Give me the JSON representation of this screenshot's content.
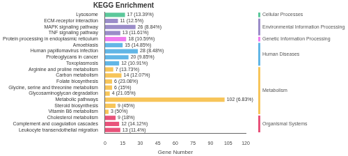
{
  "chart_data": {
    "type": "bar",
    "orientation": "horizontal",
    "title": "KEGG Enrichment",
    "x_label": "Gene Number",
    "categories": [
      "Lysosome",
      "ECM-receptor interaction",
      "MAPK signaling pathway",
      "TNF signaling pathway",
      "Protein processing in endoplasmic reticulum",
      "Amoebiasis",
      "Human papillomavirus infection",
      "Proteoglycans in cancer",
      "Toxoplasmosis",
      "Arginine and proline metabolism",
      "Carbon metabolism",
      "Folate biosynthesis",
      "Glycine, serine and threonine metabolism",
      "Glycosaminoglycan degradation",
      "Metabolic pathways",
      "Steroid biosynthesis",
      "Vitamin B6 metabolism",
      "Cholesterol metabolism",
      "Complement and coagulation cascades",
      "Leukocyte transendothelial migration"
    ],
    "values": [
      17,
      11,
      26,
      13,
      18,
      15,
      28,
      20,
      12,
      7,
      14,
      6,
      6,
      4,
      102,
      9,
      3,
      9,
      12,
      13
    ],
    "value_labels": [
      "17 (13.39%)",
      "11 (12.5%)",
      "26 (8.84%)",
      "13 (11.61%)",
      "18 (10.59%)",
      "15 (14.85%)",
      "28 (8.48%)",
      "20 (9.85%)",
      "12 (10.91%)",
      "7 (13.73%)",
      "14 (12.07%)",
      "6 (23.08%)",
      "6 (15%)",
      "4 (21.05%)",
      "102 (6.83%)",
      "9 (45%)",
      "3 (50%)",
      "9 (18%)",
      "12 (14.12%)",
      "13 (11.4%)"
    ],
    "data_labels": true,
    "colors": [
      "#5cc89b",
      "#9b8dc9",
      "#9b8dc9",
      "#9b8dc9",
      "#f07cf0",
      "#62b6e6",
      "#62b6e6",
      "#62b6e6",
      "#62b6e6",
      "#f7c55a",
      "#f7c55a",
      "#f7c55a",
      "#f7c55a",
      "#f7c55a",
      "#f7c55a",
      "#f7c55a",
      "#f7c55a",
      "#e8527a",
      "#e8527a",
      "#e8527a"
    ],
    "groups": [
      {
        "name": "Cellular Processes",
        "color": "#5cc89b",
        "categories": [
          "Lysosome"
        ]
      },
      {
        "name": "Environmental Information Processing",
        "color": "#9b8dc9",
        "categories": [
          "ECM-receptor interaction",
          "MAPK signaling pathway",
          "TNF signaling pathway"
        ]
      },
      {
        "name": "Genetic Information Processing",
        "color": "#f07cf0",
        "categories": [
          "Protein processing in endoplasmic reticulum"
        ]
      },
      {
        "name": "Human Diseases",
        "color": "#62b6e6",
        "categories": [
          "Amoebiasis",
          "Human papillomavirus infection",
          "Proteoglycans in cancer",
          "Toxoplasmosis"
        ]
      },
      {
        "name": "Metabolism",
        "color": "#f7c55a",
        "categories": [
          "Arginine and proline metabolism",
          "Carbon metabolism",
          "Folate biosynthesis",
          "Glycine, serine and threonine metabolism",
          "Glycosaminoglycan degradation",
          "Metabolic pathways",
          "Steroid biosynthesis",
          "Vitamin B6 metabolism"
        ]
      },
      {
        "name": "Organismal Systems",
        "color": "#e8527a",
        "categories": [
          "Cholesterol metabolism",
          "Complement and coagulation cascades",
          "Leukocyte transendothelial migration"
        ]
      }
    ],
    "xlim": [
      0,
      120
    ],
    "xticks": [
      0,
      15,
      30,
      45,
      60,
      75,
      90,
      105,
      120
    ],
    "grid": false
  }
}
